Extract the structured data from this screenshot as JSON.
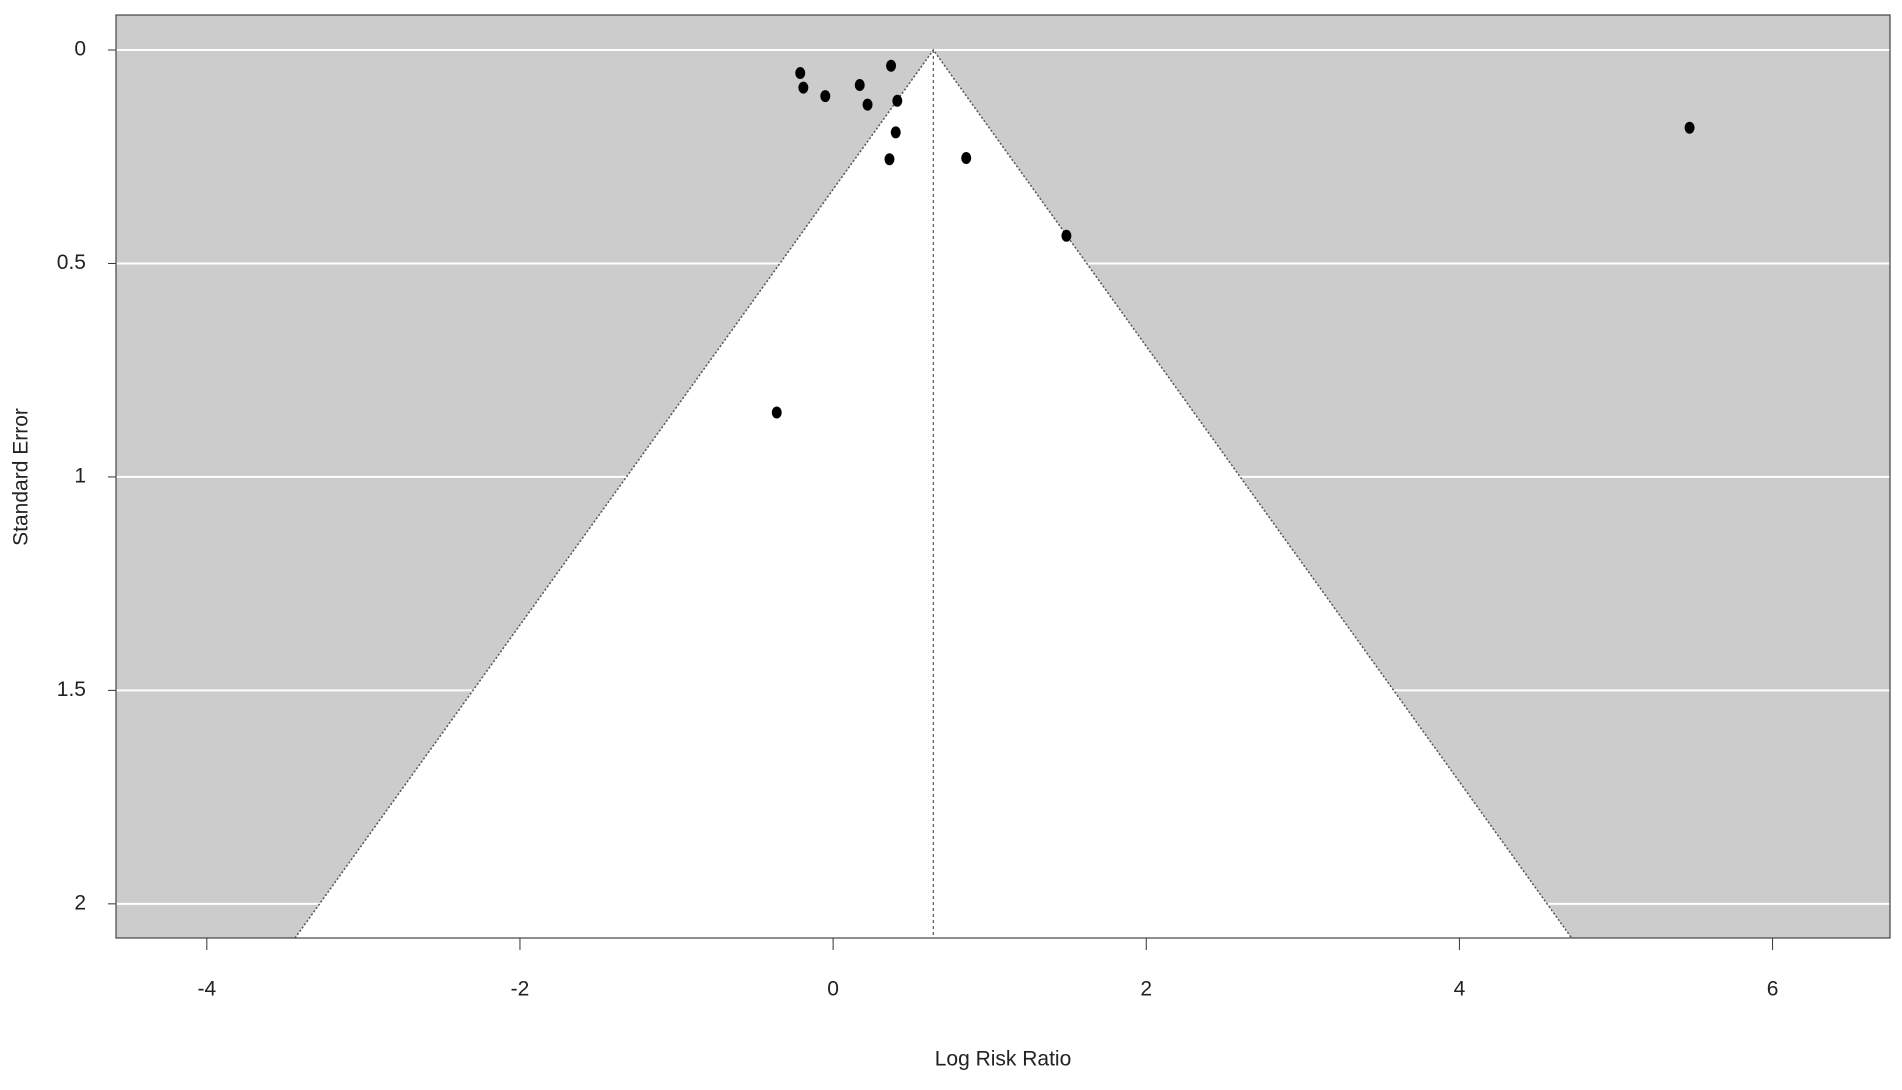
{
  "chart_data": {
    "type": "scatter",
    "x_label": "Log Risk Ratio",
    "y_label": "Standard Error",
    "x": [
      -0.21,
      -0.19,
      -0.05,
      0.17,
      0.22,
      0.37,
      0.41,
      0.4,
      0.36,
      0.85,
      1.49,
      -0.36,
      5.47
    ],
    "values": [
      0.054,
      0.088,
      0.108,
      0.082,
      0.128,
      0.037,
      0.119,
      0.193,
      0.256,
      0.253,
      0.435,
      0.849,
      0.182
    ],
    "color": "#000000",
    "xlim": [
      -4.58,
      6.75
    ],
    "ylim": [
      2.08,
      -0.082
    ],
    "xticks": [
      -4,
      -2,
      0,
      2,
      4,
      6
    ],
    "yticks": [
      0,
      0.5,
      1,
      1.5,
      2
    ],
    "grid": true,
    "reference_x": 0.64,
    "funnel_z": 1.96
  }
}
